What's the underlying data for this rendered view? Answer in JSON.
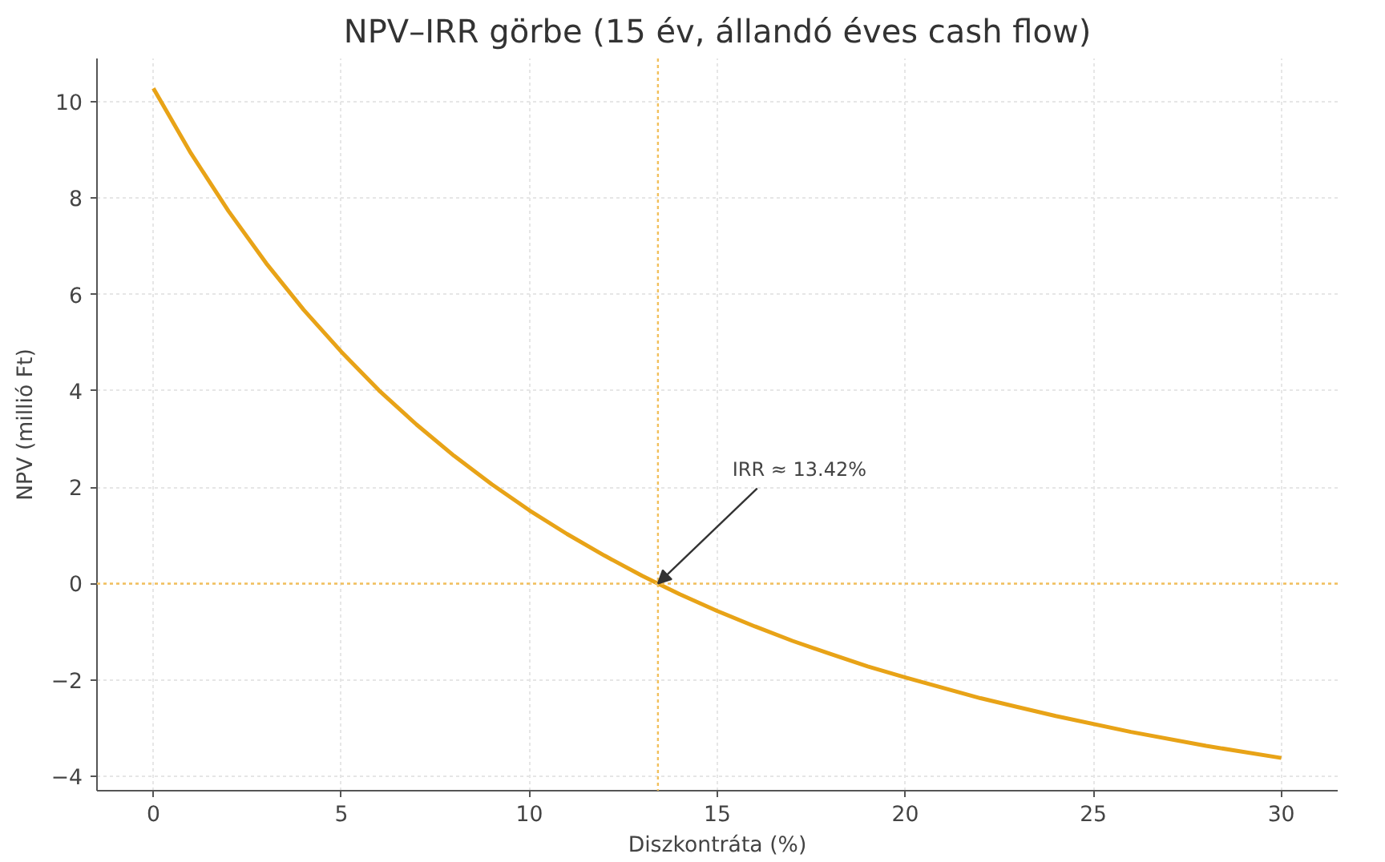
{
  "chart_data": {
    "type": "line",
    "title": "NPV–IRR görbe (15 év, állandó éves cash flow)",
    "xlabel": "Diszkontráta (%)",
    "ylabel": "NPV (millió Ft)",
    "x": [
      0,
      1,
      2,
      3,
      4,
      5,
      6,
      7,
      8,
      9,
      10,
      11,
      12,
      13,
      13.42,
      14,
      15,
      16,
      17,
      18,
      19,
      20,
      22,
      24,
      26,
      28,
      30
    ],
    "series": [
      {
        "color": "#e8a317",
        "values": [
          10.28,
          8.93,
          7.73,
          6.65,
          5.68,
          4.81,
          4.01,
          3.3,
          2.65,
          2.06,
          1.52,
          1.03,
          0.58,
          0.16,
          0,
          -0.22,
          -0.57,
          -0.89,
          -1.19,
          -1.46,
          -1.72,
          -1.95,
          -2.38,
          -2.75,
          -3.08,
          -3.37,
          -3.62
        ]
      }
    ],
    "xlim": [
      -1.5,
      31.5
    ],
    "ylim": [
      -4.3,
      10.9
    ],
    "xticks": [
      0,
      5,
      10,
      15,
      20,
      25,
      30
    ],
    "yticks": [
      -4,
      -2,
      0,
      2,
      4,
      6,
      8,
      10
    ],
    "grid": true,
    "marker": "none",
    "line_style": "solid",
    "ref_lines": [
      {
        "axis": "x",
        "value": 13.42,
        "color": "#f2c05c",
        "line_style": "dotted"
      },
      {
        "axis": "y",
        "value": 0,
        "color": "#f2c05c",
        "line_style": "dotted"
      }
    ],
    "annotations": [
      {
        "text": "IRR ≈ 13.42%",
        "x": 13.42,
        "y": 0
      }
    ]
  }
}
